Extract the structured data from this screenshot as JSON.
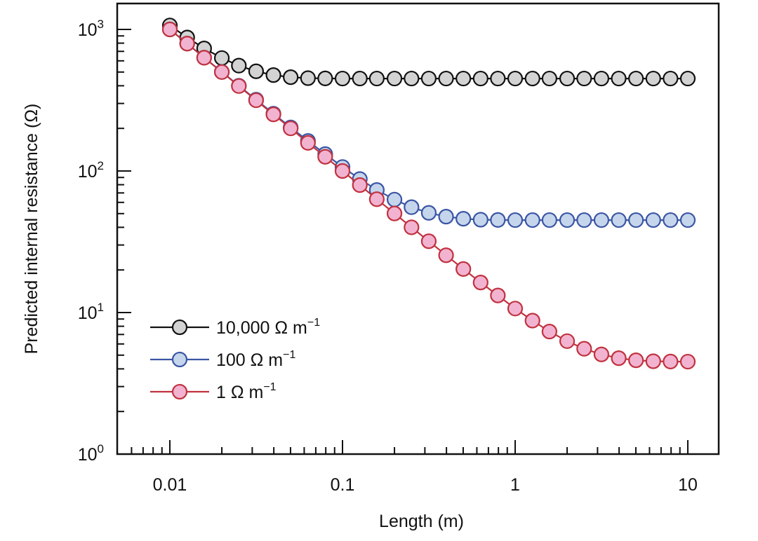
{
  "chart_data": {
    "type": "line",
    "title": "",
    "xlabel": "Length (m)",
    "ylabel": "Predicted internal resistance (Ω)",
    "xscale": "log",
    "yscale": "log",
    "xlim": [
      0.005,
      15
    ],
    "ylim": [
      1,
      1500
    ],
    "grid": false,
    "legend_position": "bottom-left",
    "x_ticks": [
      {
        "value": 0.01,
        "label": "0.01"
      },
      {
        "value": 0.1,
        "label": "0.1"
      },
      {
        "value": 1,
        "label": "1"
      },
      {
        "value": 10,
        "label": "10"
      }
    ],
    "y_ticks": [
      {
        "value": 1,
        "base": "10",
        "exp": "0"
      },
      {
        "value": 10,
        "base": "10",
        "exp": "1"
      },
      {
        "value": 100,
        "base": "10",
        "exp": "2"
      },
      {
        "value": 1000,
        "base": "10",
        "exp": "3"
      }
    ],
    "x": [
      0.01,
      0.0126,
      0.0158,
      0.02,
      0.0251,
      0.0316,
      0.0398,
      0.0501,
      0.0631,
      0.0794,
      0.1,
      0.126,
      0.158,
      0.2,
      0.251,
      0.316,
      0.398,
      0.501,
      0.631,
      0.794,
      1,
      1.26,
      1.58,
      2,
      2.51,
      3.16,
      3.98,
      5.01,
      6.31,
      7.94,
      10
    ],
    "series": [
      {
        "name": "10,000 Ω m",
        "name_sup": "−1",
        "line_color": "#111111",
        "fill_color": "#d3d3d3",
        "values": [
          1067,
          877,
          734,
          628,
          555,
          506,
          476,
          460,
          453,
          451,
          450,
          450,
          450,
          450,
          450,
          450,
          450,
          450,
          450,
          450,
          450,
          450,
          450,
          450,
          450,
          450,
          450,
          450,
          450,
          450,
          450
        ]
      },
      {
        "name": "100 Ω m",
        "name_sup": "−1",
        "line_color": "#3a55a4",
        "fill_color": "#c5d5ec",
        "values": [
          1001,
          795,
          632,
          501,
          400,
          319,
          254,
          203,
          163,
          131.6,
          106.7,
          87.7,
          73.4,
          62.8,
          55.5,
          50.6,
          47.6,
          46.0,
          45.3,
          45.1,
          45,
          45,
          45,
          45,
          45,
          45,
          45,
          45,
          45,
          45,
          45
        ]
      },
      {
        "name": "1 Ω m",
        "name_sup": "−1",
        "line_color": "#c0323f",
        "fill_color": "#f2b3d1",
        "values": [
          1000,
          794,
          631,
          500,
          398,
          316,
          251,
          200,
          158,
          126,
          100,
          79.5,
          63.2,
          50.1,
          40.0,
          31.9,
          25.4,
          20.3,
          16.3,
          13.2,
          10.67,
          8.77,
          7.34,
          6.28,
          5.55,
          5.06,
          4.76,
          4.6,
          4.53,
          4.51,
          4.5
        ]
      }
    ]
  }
}
